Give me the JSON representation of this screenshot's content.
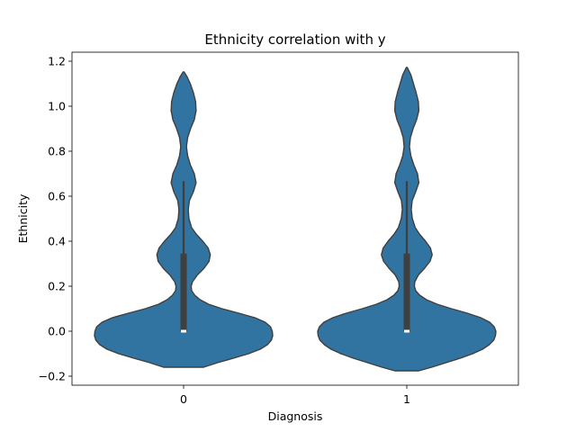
{
  "chart_data": {
    "type": "violin",
    "title": "Ethnicity correlation with y",
    "xlabel": "Diagnosis",
    "ylabel": "Ethnicity",
    "categories": [
      "0",
      "1"
    ],
    "ylim": [
      -0.24,
      1.24
    ],
    "yticks": [
      -0.2,
      0.0,
      0.2,
      0.4,
      0.6,
      0.8,
      1.0,
      1.2
    ],
    "ytick_labels": [
      "−0.2",
      "0.0",
      "0.2",
      "0.4",
      "0.6",
      "0.8",
      "1.0",
      "1.2"
    ],
    "grid": false,
    "violins": [
      {
        "category": "0",
        "color": "#3274a1",
        "box": {
          "q1": 0.0,
          "median": 0.0,
          "q3": 0.345,
          "whisker_low": 0.0,
          "whisker_high": 0.667
        },
        "profile": [
          [
            -0.16,
            0.225
          ],
          [
            -0.14,
            0.38
          ],
          [
            -0.12,
            0.56
          ],
          [
            -0.1,
            0.73
          ],
          [
            -0.08,
            0.86
          ],
          [
            -0.06,
            0.94
          ],
          [
            -0.04,
            0.985
          ],
          [
            -0.02,
            1.0
          ],
          [
            0.0,
            0.995
          ],
          [
            0.02,
            0.975
          ],
          [
            0.04,
            0.915
          ],
          [
            0.06,
            0.8
          ],
          [
            0.08,
            0.62
          ],
          [
            0.1,
            0.43
          ],
          [
            0.12,
            0.28
          ],
          [
            0.14,
            0.185
          ],
          [
            0.16,
            0.125
          ],
          [
            0.18,
            0.09
          ],
          [
            0.2,
            0.085
          ],
          [
            0.22,
            0.1
          ],
          [
            0.25,
            0.155
          ],
          [
            0.28,
            0.23
          ],
          [
            0.31,
            0.285
          ],
          [
            0.34,
            0.3
          ],
          [
            0.37,
            0.275
          ],
          [
            0.4,
            0.215
          ],
          [
            0.43,
            0.145
          ],
          [
            0.46,
            0.09
          ],
          [
            0.5,
            0.06
          ],
          [
            0.54,
            0.052
          ],
          [
            0.58,
            0.065
          ],
          [
            0.62,
            0.11
          ],
          [
            0.66,
            0.14
          ],
          [
            0.7,
            0.12
          ],
          [
            0.74,
            0.075
          ],
          [
            0.78,
            0.045
          ],
          [
            0.82,
            0.032
          ],
          [
            0.86,
            0.045
          ],
          [
            0.9,
            0.078
          ],
          [
            0.94,
            0.12
          ],
          [
            0.98,
            0.14
          ],
          [
            1.02,
            0.135
          ],
          [
            1.06,
            0.11
          ],
          [
            1.1,
            0.075
          ],
          [
            1.13,
            0.04
          ],
          [
            1.152,
            0.006
          ]
        ]
      },
      {
        "category": "1",
        "color": "#3274a1",
        "box": {
          "q1": 0.0,
          "median": 0.0,
          "q3": 0.345,
          "whisker_low": 0.0,
          "whisker_high": 0.667
        },
        "profile": [
          [
            -0.176,
            0.135
          ],
          [
            -0.16,
            0.28
          ],
          [
            -0.14,
            0.44
          ],
          [
            -0.12,
            0.6
          ],
          [
            -0.1,
            0.74
          ],
          [
            -0.08,
            0.85
          ],
          [
            -0.06,
            0.925
          ],
          [
            -0.04,
            0.975
          ],
          [
            -0.02,
            0.995
          ],
          [
            0.0,
            1.0
          ],
          [
            0.02,
            0.98
          ],
          [
            0.04,
            0.93
          ],
          [
            0.06,
            0.83
          ],
          [
            0.08,
            0.68
          ],
          [
            0.1,
            0.5
          ],
          [
            0.12,
            0.34
          ],
          [
            0.14,
            0.22
          ],
          [
            0.16,
            0.145
          ],
          [
            0.18,
            0.1
          ],
          [
            0.2,
            0.085
          ],
          [
            0.22,
            0.09
          ],
          [
            0.25,
            0.13
          ],
          [
            0.28,
            0.2
          ],
          [
            0.31,
            0.26
          ],
          [
            0.34,
            0.285
          ],
          [
            0.37,
            0.265
          ],
          [
            0.4,
            0.21
          ],
          [
            0.43,
            0.145
          ],
          [
            0.46,
            0.095
          ],
          [
            0.5,
            0.062
          ],
          [
            0.54,
            0.05
          ],
          [
            0.58,
            0.06
          ],
          [
            0.62,
            0.1
          ],
          [
            0.66,
            0.135
          ],
          [
            0.7,
            0.12
          ],
          [
            0.74,
            0.078
          ],
          [
            0.78,
            0.045
          ],
          [
            0.82,
            0.03
          ],
          [
            0.86,
            0.04
          ],
          [
            0.9,
            0.07
          ],
          [
            0.94,
            0.11
          ],
          [
            0.98,
            0.135
          ],
          [
            1.02,
            0.13
          ],
          [
            1.06,
            0.105
          ],
          [
            1.1,
            0.075
          ],
          [
            1.14,
            0.045
          ],
          [
            1.172,
            0.006
          ]
        ]
      }
    ]
  }
}
